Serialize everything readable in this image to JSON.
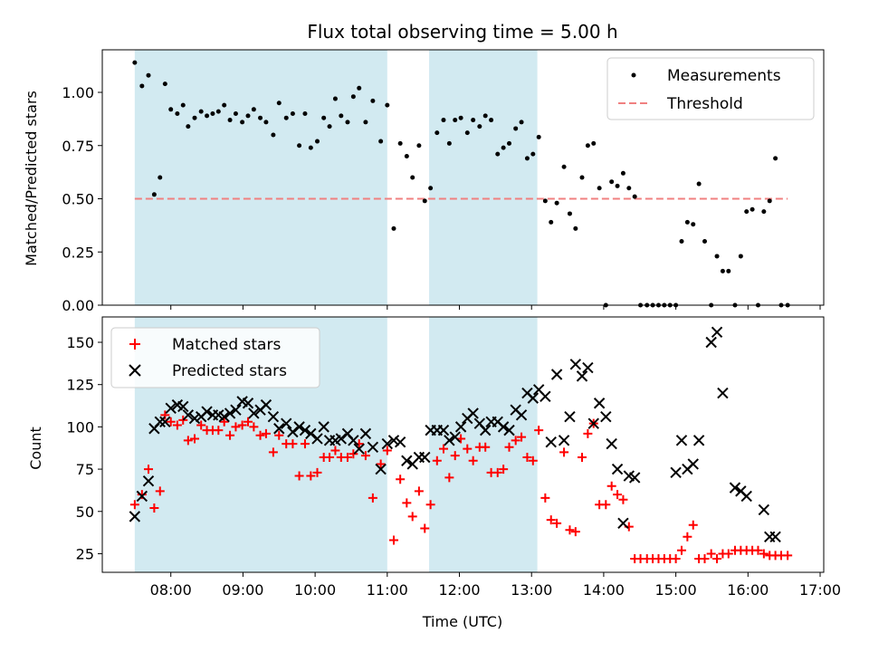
{
  "chart_data": [
    {
      "id": "top",
      "type": "scatter",
      "title": "Flux total observing time = 5.00 h",
      "ylabel": "Matched/Predicted stars",
      "ylim": [
        0,
        1.2
      ],
      "yticks": [
        0,
        0.25,
        0.5,
        0.75,
        1.0
      ],
      "ytick_labels": [
        "0.00",
        "0.25",
        "0.50",
        "0.75",
        "1.00"
      ],
      "threshold": {
        "label": "Threshold",
        "value": 0.5,
        "x_start": 7.5,
        "x_end": 16.55,
        "color": "#f08080"
      },
      "series": [
        {
          "name": "Measurements",
          "color": "#000000",
          "x": [
            7.5,
            7.6,
            7.69,
            7.77,
            7.85,
            7.92,
            8.0,
            8.09,
            8.17,
            8.24,
            8.33,
            8.42,
            8.5,
            8.58,
            8.66,
            8.74,
            8.82,
            8.9,
            8.99,
            9.07,
            9.15,
            9.24,
            9.32,
            9.42,
            9.5,
            9.6,
            9.69,
            9.78,
            9.86,
            9.94,
            10.03,
            10.12,
            10.2,
            10.28,
            10.36,
            10.45,
            10.53,
            10.61,
            10.7,
            10.8,
            10.91,
            11.0,
            11.09,
            11.18,
            11.27,
            11.35,
            11.44,
            11.52,
            11.6,
            11.69,
            11.78,
            11.86,
            11.94,
            12.02,
            12.11,
            12.19,
            12.28,
            12.36,
            12.44,
            12.53,
            12.61,
            12.69,
            12.78,
            12.86,
            12.94,
            13.02,
            13.1,
            13.19,
            13.27,
            13.35,
            13.45,
            13.53,
            13.61,
            13.7,
            13.78,
            13.86,
            13.94,
            14.03,
            14.11,
            14.19,
            14.27,
            14.35,
            14.43,
            14.51,
            14.6,
            14.68,
            14.76,
            14.84,
            14.92,
            15.0,
            15.08,
            15.16,
            15.24,
            15.32,
            15.4,
            15.49,
            15.57,
            15.65,
            15.73,
            15.82,
            15.9,
            15.98,
            16.06,
            16.14,
            16.22,
            16.3,
            16.38,
            16.46,
            16.55
          ],
          "y": [
            1.14,
            1.03,
            1.08,
            0.52,
            0.6,
            1.04,
            0.92,
            0.9,
            0.94,
            0.84,
            0.88,
            0.91,
            0.89,
            0.9,
            0.91,
            0.94,
            0.87,
            0.9,
            0.86,
            0.89,
            0.92,
            0.88,
            0.86,
            0.8,
            0.95,
            0.88,
            0.9,
            0.75,
            0.9,
            0.74,
            0.77,
            0.88,
            0.84,
            0.97,
            0.89,
            0.86,
            0.98,
            1.02,
            0.86,
            0.96,
            0.77,
            0.94,
            0.36,
            0.76,
            0.7,
            0.6,
            0.75,
            0.49,
            0.55,
            0.81,
            0.87,
            0.76,
            0.87,
            0.88,
            0.81,
            0.87,
            0.84,
            0.89,
            0.87,
            0.71,
            0.74,
            0.76,
            0.83,
            0.86,
            0.69,
            0.71,
            0.79,
            0.49,
            0.39,
            0.48,
            0.65,
            0.43,
            0.36,
            0.6,
            0.75,
            0.76,
            0.55,
            0.0,
            0.58,
            0.56,
            0.62,
            0.55,
            0.51,
            0.0,
            0.0,
            0.0,
            0.0,
            0.0,
            0.0,
            0.0,
            0.3,
            0.39,
            0.38,
            0.57,
            0.3,
            0.0,
            0.23,
            0.16,
            0.16,
            0.0,
            0.23,
            0.44,
            0.45,
            0.0,
            0.44,
            0.49,
            0.69,
            0.0,
            0.0
          ]
        }
      ]
    },
    {
      "id": "bottom",
      "type": "scatter",
      "xlabel": "Time (UTC)",
      "ylabel": "Count",
      "xlim": [
        7.05,
        17.05
      ],
      "ylim": [
        14,
        165
      ],
      "yticks": [
        25,
        50,
        75,
        100,
        125,
        150
      ],
      "ytick_labels": [
        "25",
        "50",
        "75",
        "100",
        "125",
        "150"
      ],
      "xticks": [
        8,
        9,
        10,
        11,
        12,
        13,
        14,
        15,
        16,
        17
      ],
      "xtick_labels": [
        "08:00",
        "09:00",
        "10:00",
        "11:00",
        "12:00",
        "13:00",
        "14:00",
        "15:00",
        "16:00",
        "17:00"
      ],
      "shaded_intervals": [
        [
          7.5,
          11.0
        ],
        [
          11.58,
          13.08
        ]
      ],
      "shade_color": "#add8e6",
      "series": [
        {
          "name": "Matched stars",
          "color": "#ff0000",
          "x": [
            7.5,
            7.6,
            7.69,
            7.77,
            7.85,
            7.92,
            8.0,
            8.09,
            8.17,
            8.24,
            8.33,
            8.42,
            8.5,
            8.58,
            8.66,
            8.74,
            8.82,
            8.9,
            8.99,
            9.07,
            9.15,
            9.24,
            9.32,
            9.42,
            9.5,
            9.6,
            9.69,
            9.78,
            9.86,
            9.94,
            10.03,
            10.12,
            10.2,
            10.28,
            10.36,
            10.45,
            10.53,
            10.61,
            10.7,
            10.8,
            10.91,
            11.0,
            11.09,
            11.18,
            11.27,
            11.35,
            11.44,
            11.52,
            11.6,
            11.69,
            11.78,
            11.86,
            11.94,
            12.02,
            12.11,
            12.19,
            12.28,
            12.36,
            12.44,
            12.53,
            12.61,
            12.69,
            12.78,
            12.86,
            12.94,
            13.02,
            13.1,
            13.19,
            13.27,
            13.35,
            13.45,
            13.53,
            13.61,
            13.7,
            13.78,
            13.86,
            13.94,
            14.03,
            14.11,
            14.19,
            14.27,
            14.35,
            14.43,
            14.51,
            14.6,
            14.68,
            14.76,
            14.84,
            14.92,
            15.0,
            15.08,
            15.16,
            15.24,
            15.32,
            15.4,
            15.49,
            15.57,
            15.65,
            15.73,
            15.82,
            15.9,
            15.98,
            16.06,
            16.14,
            16.22,
            16.3,
            16.38,
            16.46,
            16.55
          ],
          "y": [
            54,
            60,
            75,
            52,
            62,
            107,
            103,
            101,
            104,
            92,
            93,
            101,
            98,
            98,
            98,
            103,
            95,
            100,
            101,
            103,
            100,
            95,
            96,
            85,
            95,
            90,
            90,
            71,
            90,
            71,
            73,
            82,
            82,
            86,
            82,
            82,
            84,
            90,
            83,
            58,
            78,
            86,
            33,
            69,
            55,
            47,
            62,
            40,
            54,
            80,
            87,
            70,
            83,
            93,
            87,
            80,
            88,
            88,
            73,
            73,
            75,
            88,
            92,
            94,
            82,
            80,
            98,
            58,
            45,
            43,
            85,
            39,
            38,
            82,
            96,
            102,
            54,
            54,
            65,
            60,
            57,
            41,
            22,
            22,
            22,
            22,
            22,
            22,
            22,
            22,
            27,
            35,
            42,
            22,
            22,
            25,
            22,
            25,
            25,
            27,
            27,
            27,
            27,
            27,
            25,
            24,
            24,
            24,
            24
          ]
        },
        {
          "name": "Predicted stars",
          "color": "#000000",
          "x": [
            7.5,
            7.6,
            7.69,
            7.77,
            7.85,
            7.92,
            8.0,
            8.09,
            8.17,
            8.24,
            8.33,
            8.42,
            8.5,
            8.58,
            8.66,
            8.74,
            8.82,
            8.9,
            8.99,
            9.07,
            9.15,
            9.24,
            9.32,
            9.42,
            9.5,
            9.6,
            9.69,
            9.78,
            9.86,
            9.94,
            10.03,
            10.12,
            10.2,
            10.28,
            10.36,
            10.45,
            10.53,
            10.61,
            10.7,
            10.8,
            10.91,
            11.0,
            11.09,
            11.18,
            11.27,
            11.35,
            11.44,
            11.52,
            11.6,
            11.69,
            11.78,
            11.86,
            11.94,
            12.02,
            12.11,
            12.19,
            12.28,
            12.36,
            12.44,
            12.53,
            12.61,
            12.69,
            12.78,
            12.86,
            12.94,
            13.02,
            13.1,
            13.19,
            13.27,
            13.35,
            13.45,
            13.53,
            13.61,
            13.7,
            13.78,
            13.86,
            13.94,
            14.03,
            14.11,
            14.19,
            14.27,
            14.35,
            14.43,
            15.0,
            15.08,
            15.16,
            15.24,
            15.32,
            15.49,
            15.57,
            15.65,
            15.82,
            15.9,
            15.98,
            16.22,
            16.3,
            16.38
          ],
          "y": [
            47,
            59,
            68,
            99,
            103,
            103,
            111,
            113,
            112,
            107,
            105,
            106,
            109,
            107,
            107,
            106,
            108,
            110,
            115,
            114,
            108,
            110,
            113,
            106,
            99,
            102,
            97,
            100,
            98,
            96,
            93,
            100,
            92,
            92,
            93,
            96,
            92,
            87,
            96,
            88,
            75,
            90,
            92,
            91,
            80,
            78,
            82,
            82,
            98,
            98,
            98,
            92,
            94,
            100,
            105,
            108,
            102,
            98,
            103,
            103,
            100,
            98,
            110,
            107,
            120,
            117,
            122,
            118,
            91,
            131,
            92,
            106,
            137,
            130,
            135,
            102,
            114,
            106,
            90,
            75,
            43,
            71,
            70,
            73,
            92,
            75,
            78,
            92,
            150,
            156,
            120,
            64,
            62,
            59,
            51,
            35,
            35
          ]
        }
      ],
      "legend": {
        "placement": "upper-left"
      }
    }
  ]
}
